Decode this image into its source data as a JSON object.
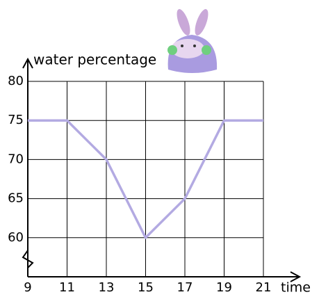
{
  "chart_data": {
    "type": "line",
    "y_label": "water percentage",
    "x_label": "time",
    "x": [
      9,
      11,
      13,
      15,
      17,
      19,
      21
    ],
    "values": [
      75,
      75,
      70,
      60,
      65,
      75,
      75
    ],
    "color": "#b3aae2",
    "xlim": [
      9,
      21
    ],
    "xticks": [
      9,
      11,
      13,
      15,
      17,
      19,
      21
    ],
    "ylim": [
      55,
      80
    ],
    "yticks": [
      60,
      65,
      70,
      75,
      80
    ],
    "grid": true
  }
}
